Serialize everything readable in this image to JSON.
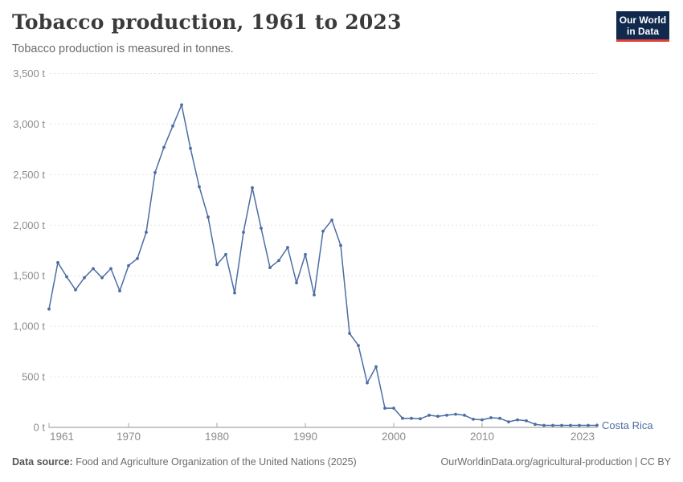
{
  "header": {
    "title": "Tobacco production, 1961 to 2023",
    "subtitle": "Tobacco production is measured in tonnes.",
    "logo_line1": "Our World",
    "logo_line2": "in Data"
  },
  "chart_data": {
    "type": "line",
    "title": "Tobacco production, 1961 to 2023",
    "unit": "tonnes",
    "xlim": [
      1961,
      2023
    ],
    "ylim": [
      0,
      3500
    ],
    "grid": "horizontal-dashed",
    "legend_position": "end-of-line-label",
    "x_ticks": [
      {
        "year": 1961,
        "label": "1961",
        "dx": 16
      },
      {
        "year": 1970,
        "label": "1970",
        "dx": 0
      },
      {
        "year": 1980,
        "label": "1980",
        "dx": 0
      },
      {
        "year": 1990,
        "label": "1990",
        "dx": 0
      },
      {
        "year": 2000,
        "label": "2000",
        "dx": 0
      },
      {
        "year": 2010,
        "label": "2010",
        "dx": 0
      },
      {
        "year": 2023,
        "label": "2023",
        "dx": -18
      }
    ],
    "y_ticks": [
      0,
      500,
      1000,
      1500,
      2000,
      2500,
      3000,
      3500
    ],
    "y_tick_labels": [
      "0 t",
      "500 t",
      "1,000 t",
      "1,500 t",
      "2,000 t",
      "2,500 t",
      "3,000 t",
      "3,500 t"
    ],
    "years": [
      1961,
      1962,
      1963,
      1964,
      1965,
      1966,
      1967,
      1968,
      1969,
      1970,
      1971,
      1972,
      1973,
      1974,
      1975,
      1976,
      1977,
      1978,
      1979,
      1980,
      1981,
      1982,
      1983,
      1984,
      1985,
      1986,
      1987,
      1988,
      1989,
      1990,
      1991,
      1992,
      1993,
      1994,
      1995,
      1996,
      1997,
      1998,
      1999,
      2000,
      2001,
      2002,
      2003,
      2004,
      2005,
      2006,
      2007,
      2008,
      2009,
      2010,
      2011,
      2012,
      2013,
      2014,
      2015,
      2016,
      2017,
      2018,
      2019,
      2020,
      2021,
      2022,
      2023
    ],
    "series": [
      {
        "name": "Costa Rica",
        "values": [
          1170,
          1630,
          1490,
          1360,
          1480,
          1570,
          1480,
          1570,
          1350,
          1600,
          1670,
          1930,
          2520,
          2770,
          2980,
          3190,
          2760,
          2380,
          2080,
          1610,
          1710,
          1330,
          1930,
          2370,
          1970,
          1580,
          1650,
          1780,
          1430,
          1710,
          1310,
          1940,
          2050,
          1800,
          930,
          810,
          440,
          600,
          190,
          190,
          90,
          90,
          85,
          120,
          110,
          120,
          130,
          120,
          80,
          75,
          95,
          90,
          55,
          75,
          65,
          30,
          20,
          20,
          20,
          20,
          20,
          20,
          20
        ]
      }
    ],
    "colors": {
      "series": "#4c6da4",
      "grid": "#e2e2e2",
      "axis": "#8f8f8f",
      "tick": "#a5a5a5",
      "tick_text": "#8c8c8c",
      "logo_bg": "#10294d",
      "logo_red": "#e0403a"
    }
  },
  "footer": {
    "source_label": "Data source:",
    "source_text": " Food and Agriculture Organization of the United Nations (2025)",
    "credit": "OurWorldinData.org/agricultural-production | CC BY"
  }
}
